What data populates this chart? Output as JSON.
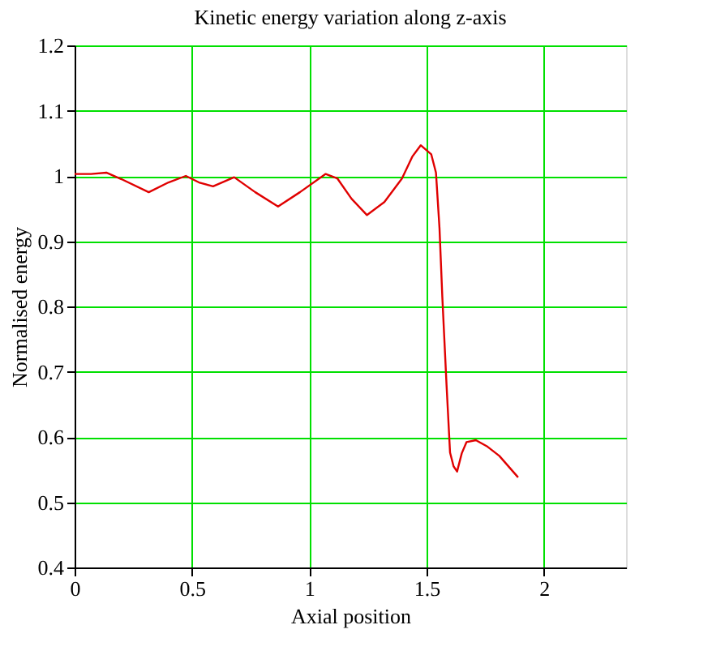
{
  "chart_data": {
    "type": "line",
    "title": "Kinetic energy variation along z-axis",
    "xlabel": "Axial position",
    "ylabel": "Normalised energy",
    "series": [
      {
        "color": "#e00000",
        "x": [
          0,
          0.07,
          0.135,
          0.2,
          0.316,
          0.4,
          0.474,
          0.53,
          0.59,
          0.68,
          0.77,
          0.867,
          0.96,
          1.07,
          1.12,
          1.18,
          1.246,
          1.32,
          1.395,
          1.44,
          1.475,
          1.52,
          1.54,
          1.555,
          1.567,
          1.585,
          1.6,
          1.615,
          1.63,
          1.65,
          1.67,
          1.71,
          1.76,
          1.81,
          1.89
        ],
        "values": [
          1.003,
          1.003,
          1.005,
          0.995,
          0.975,
          0.99,
          1.0,
          0.99,
          0.984,
          0.998,
          0.975,
          0.953,
          0.975,
          1.003,
          0.996,
          0.965,
          0.94,
          0.96,
          0.996,
          1.03,
          1.047,
          1.033,
          1.005,
          0.92,
          0.815,
          0.68,
          0.576,
          0.555,
          0.547,
          0.575,
          0.592,
          0.595,
          0.585,
          0.571,
          0.538
        ]
      }
    ],
    "xlim": [
      0,
      2.35
    ],
    "xticks": [
      0,
      0.5,
      1,
      1.5,
      2
    ],
    "ylim": [
      0.4,
      1.2
    ],
    "yticks": [
      0.4,
      0.5,
      0.6,
      0.7,
      0.8,
      0.9,
      1,
      1.1,
      1.2
    ],
    "grid": true,
    "marker": "none",
    "line_style": "solid"
  }
}
